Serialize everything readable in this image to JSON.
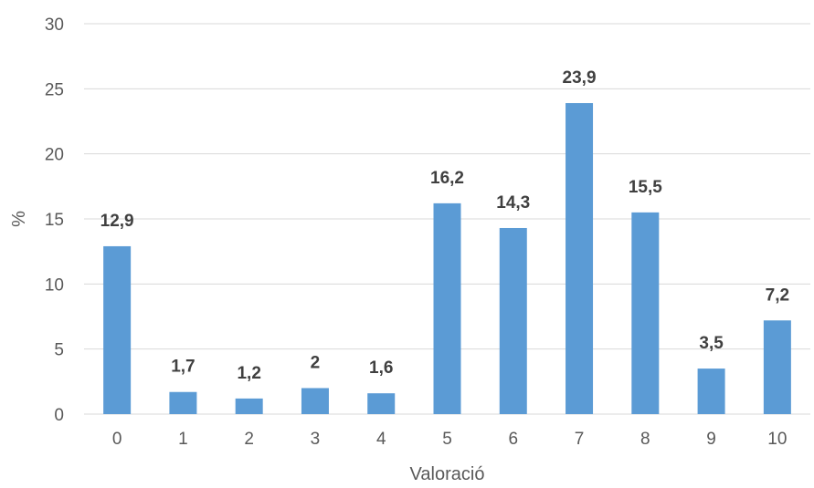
{
  "chart_data": {
    "type": "bar",
    "categories": [
      "0",
      "1",
      "2",
      "3",
      "4",
      "5",
      "6",
      "7",
      "8",
      "9",
      "10"
    ],
    "values": [
      12.9,
      1.7,
      1.2,
      2,
      1.6,
      16.2,
      14.3,
      23.9,
      15.5,
      3.5,
      7.2
    ],
    "data_labels": [
      "12,9",
      "1,7",
      "1,2",
      "2",
      "1,6",
      "16,2",
      "14,3",
      "23,9",
      "15,5",
      "3,5",
      "7,2"
    ],
    "xlabel": "Valoració",
    "ylabel": "%",
    "ylim": [
      0,
      30
    ],
    "yticks": [
      "0",
      "5",
      "10",
      "15",
      "20",
      "25",
      "30"
    ],
    "grid": true,
    "legend": "none",
    "bar_color": "#5B9BD5",
    "grid_color": "#D9D9D9"
  }
}
